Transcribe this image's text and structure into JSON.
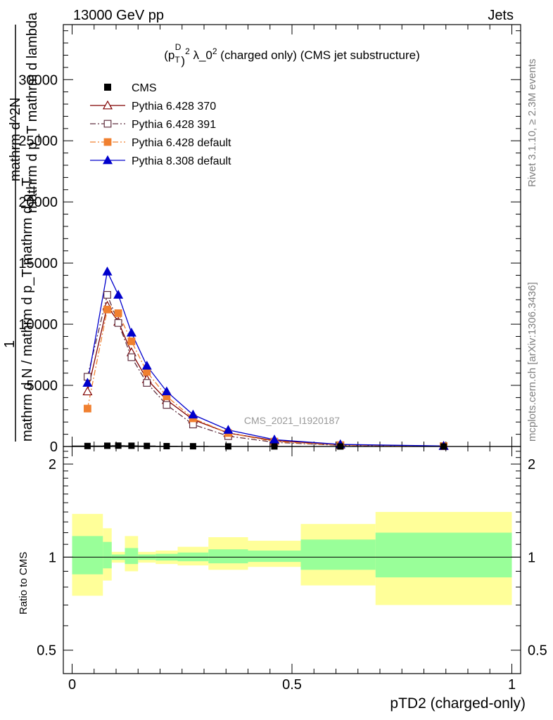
{
  "header": {
    "energy_label": "13000 GeV pp",
    "process_label": "Jets",
    "rivet_label": "Rivet 3.1.10, ≥ 2.3M events",
    "mcplots_label": "mcplots.cern.ch [arXiv:1306.3436]",
    "analysis_id": "CMS_2021_I1920187"
  },
  "chart_data": {
    "type": "line",
    "title": "(p_T^D)^2 λ_0^2 (charged only) (CMS jet substructure)",
    "ylabel_top": "mathrm d^2N",
    "ylabel_frac": "mathrm d p_T mathrm d lambda",
    "ylabel_one": "1",
    "ylabel_bottom": "mathrm d N / mathrm d p_T mathrm d p_T",
    "xlabel": "pTD2 (charged-only)",
    "ratio_ylabel": "Ratio to CMS",
    "xlim": [
      -0.02,
      1.02
    ],
    "ylim": [
      0,
      34500
    ],
    "ratio_ylim": [
      0.42,
      2.28
    ],
    "x_ticks": [
      {
        "value": 0,
        "label": "0"
      },
      {
        "value": 0.5,
        "label": "0.5"
      },
      {
        "value": 1,
        "label": "1"
      }
    ],
    "y_ticks": [
      {
        "value": 0,
        "label": "0"
      },
      {
        "value": 5000,
        "label": "5000"
      },
      {
        "value": 10000,
        "label": "10000"
      },
      {
        "value": 15000,
        "label": "15000"
      },
      {
        "value": 20000,
        "label": "20000"
      },
      {
        "value": 25000,
        "label": "25000"
      },
      {
        "value": 30000,
        "label": "30000"
      }
    ],
    "ratio_ticks": [
      {
        "value": 0.5,
        "label": "0.5"
      },
      {
        "value": 1,
        "label": "1"
      },
      {
        "value": 2,
        "label": "2"
      }
    ],
    "x": [
      0.035,
      0.08,
      0.105,
      0.135,
      0.17,
      0.215,
      0.275,
      0.355,
      0.46,
      0.61,
      0.845
    ],
    "cms": {
      "name": "CMS",
      "values": [
        40,
        60,
        70,
        60,
        45,
        30,
        20,
        10,
        5,
        2,
        1
      ],
      "xerr": [
        [
          0,
          0.07
        ],
        [
          0.07,
          0.09
        ],
        [
          0.09,
          0.12
        ],
        [
          0.12,
          0.15
        ],
        [
          0.15,
          0.19
        ],
        [
          0.19,
          0.24
        ],
        [
          0.24,
          0.31
        ],
        [
          0.31,
          0.4
        ],
        [
          0.4,
          0.52
        ],
        [
          0.52,
          0.69
        ],
        [
          0.69,
          1.0
        ]
      ]
    },
    "series": [
      {
        "name": "Pythia 6.428 370",
        "color": "#800000",
        "marker": "triangle-open",
        "dash": "solid",
        "values": [
          4500,
          11500,
          10200,
          7700,
          5500,
          3800,
          2200,
          1100,
          480,
          150,
          35
        ]
      },
      {
        "name": "Pythia 6.428 391",
        "color": "#603040",
        "marker": "square-open",
        "dash": "dashdot",
        "values": [
          5700,
          12400,
          10100,
          7300,
          5200,
          3400,
          1800,
          850,
          340,
          90,
          20
        ]
      },
      {
        "name": "Pythia 6.428 default",
        "color": "#f08030",
        "marker": "square-filled",
        "dash": "dashdot",
        "values": [
          3100,
          11200,
          10900,
          8600,
          6100,
          4100,
          2300,
          1100,
          400,
          110,
          25
        ]
      },
      {
        "name": "Pythia 8.308 default",
        "color": "#0000cc",
        "marker": "triangle-filled",
        "dash": "solid",
        "values": [
          5200,
          14300,
          12400,
          9300,
          6600,
          4500,
          2600,
          1350,
          560,
          170,
          40
        ]
      }
    ],
    "ratio_bands": {
      "yellow_color": "#ffff99",
      "green_color": "#99ff99",
      "bins": [
        {
          "x0": 0.0,
          "x1": 0.07,
          "y_lo": 0.75,
          "y_hi": 1.38,
          "g_lo": 0.88,
          "g_hi": 1.17
        },
        {
          "x0": 0.07,
          "x1": 0.09,
          "y_lo": 0.84,
          "y_hi": 1.24,
          "g_lo": 0.92,
          "g_hi": 1.12
        },
        {
          "x0": 0.09,
          "x1": 0.12,
          "y_lo": 0.96,
          "y_hi": 1.04,
          "g_lo": 0.98,
          "g_hi": 1.02
        },
        {
          "x0": 0.12,
          "x1": 0.15,
          "y_lo": 0.9,
          "y_hi": 1.17,
          "g_lo": 0.95,
          "g_hi": 1.07
        },
        {
          "x0": 0.15,
          "x1": 0.19,
          "y_lo": 0.96,
          "y_hi": 1.04,
          "g_lo": 0.98,
          "g_hi": 1.02
        },
        {
          "x0": 0.19,
          "x1": 0.24,
          "y_lo": 0.95,
          "y_hi": 1.05,
          "g_lo": 0.975,
          "g_hi": 1.025
        },
        {
          "x0": 0.24,
          "x1": 0.31,
          "y_lo": 0.94,
          "y_hi": 1.08,
          "g_lo": 0.97,
          "g_hi": 1.035
        },
        {
          "x0": 0.31,
          "x1": 0.4,
          "y_lo": 0.91,
          "y_hi": 1.16,
          "g_lo": 0.955,
          "g_hi": 1.06
        },
        {
          "x0": 0.4,
          "x1": 0.52,
          "y_lo": 0.93,
          "y_hi": 1.13,
          "g_lo": 0.965,
          "g_hi": 1.05
        },
        {
          "x0": 0.52,
          "x1": 0.69,
          "y_lo": 0.81,
          "y_hi": 1.28,
          "g_lo": 0.91,
          "g_hi": 1.14
        },
        {
          "x0": 0.69,
          "x1": 1.0,
          "y_lo": 0.7,
          "y_hi": 1.4,
          "g_lo": 0.86,
          "g_hi": 1.2
        }
      ]
    }
  }
}
